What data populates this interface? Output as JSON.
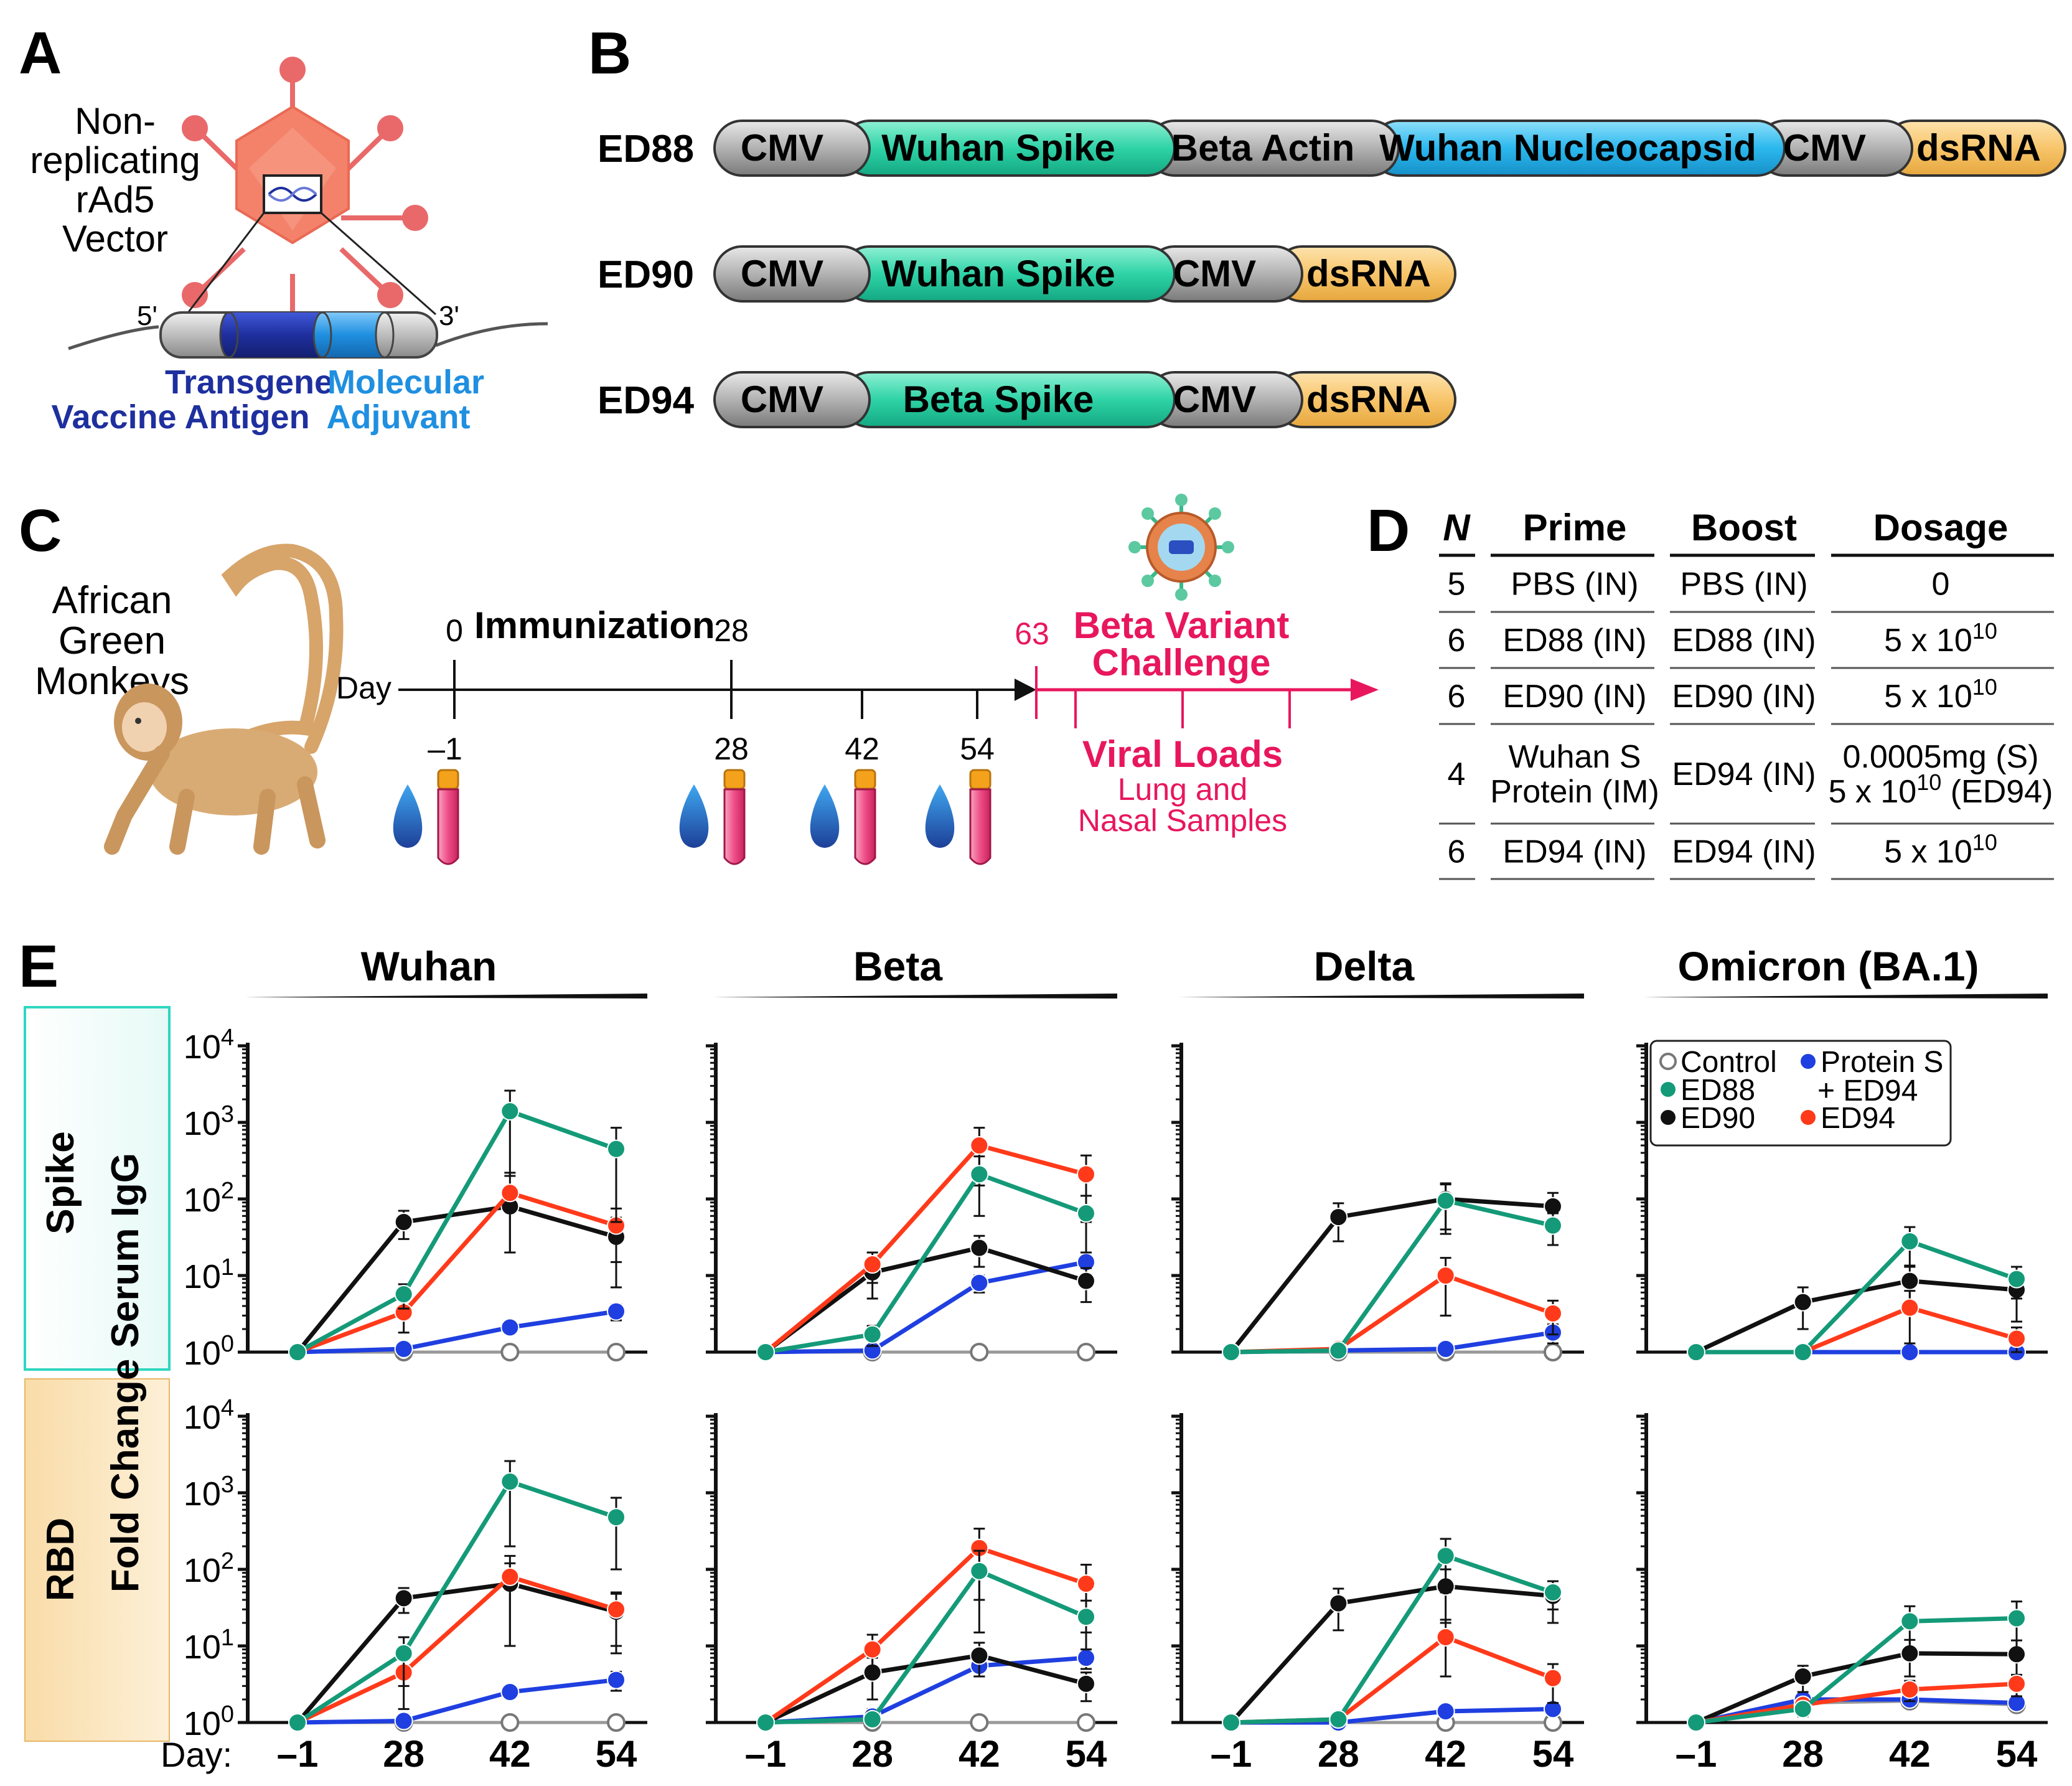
{
  "panels": {
    "a": "A",
    "b": "B",
    "c": "C",
    "d": "D",
    "e": "E"
  },
  "panel_a": {
    "vector_lines": [
      "Non-",
      "replicating",
      "rAd5",
      "Vector"
    ],
    "end5": "5'",
    "end3": "3'",
    "transgene": "Transgene",
    "antigen": "Vaccine Antigen",
    "molecular": "Molecular",
    "adjuvant": "Adjuvant",
    "colors": {
      "capsid": "#f4826b",
      "antigen": "#1e2f9e",
      "adjuvant": "#1f8fe0"
    }
  },
  "constructs": [
    {
      "name": "ED88",
      "segments": [
        {
          "label": "CMV",
          "kind": "cmv"
        },
        {
          "label": "Wuhan Spike",
          "kind": "spike"
        },
        {
          "label": "Beta Actin",
          "kind": "cmv"
        },
        {
          "label": "Wuhan Nucleocapsid",
          "kind": "nuc"
        },
        {
          "label": "CMV",
          "kind": "cmv"
        },
        {
          "label": "dsRNA",
          "kind": "ds"
        }
      ]
    },
    {
      "name": "ED90",
      "segments": [
        {
          "label": "CMV",
          "kind": "cmv"
        },
        {
          "label": "Wuhan Spike",
          "kind": "spike"
        },
        {
          "label": "CMV",
          "kind": "cmv"
        },
        {
          "label": "dsRNA",
          "kind": "ds"
        }
      ]
    },
    {
      "name": "ED94",
      "segments": [
        {
          "label": "CMV",
          "kind": "cmv"
        },
        {
          "label": "Beta Spike",
          "kind": "spike"
        },
        {
          "label": "CMV",
          "kind": "cmv"
        },
        {
          "label": "dsRNA",
          "kind": "ds"
        }
      ]
    }
  ],
  "segment_colors": {
    "cmv": "#a9a9a9",
    "spike": "#2ed3a6",
    "nuc": "#2bb8ee",
    "ds": "#f8c56b"
  },
  "panel_c": {
    "animal": [
      "African",
      "Green",
      "Monkeys"
    ],
    "day_label": "Day",
    "immunization": "Immunization",
    "day0": "0",
    "day28_top": "28",
    "day63": "63",
    "challenge_line1": "Beta Variant",
    "challenge_line2": "Challenge",
    "bleed_days": [
      "–1",
      "28",
      "42",
      "54"
    ],
    "viral_loads": "Viral Loads",
    "samples_line1": "Lung and",
    "samples_line2": "Nasal Samples",
    "challenge_color": "#e8175d"
  },
  "panel_d": {
    "headers": [
      "N",
      "Prime",
      "Boost",
      "Dosage"
    ],
    "rows": [
      {
        "n": "5",
        "prime": [
          "PBS (IN)"
        ],
        "boost": "PBS (IN)",
        "dose": [
          {
            "t": "0",
            "e": ""
          }
        ]
      },
      {
        "n": "6",
        "prime": [
          "ED88 (IN)"
        ],
        "boost": "ED88 (IN)",
        "dose": [
          {
            "t": "5 x 10",
            "e": "10"
          }
        ]
      },
      {
        "n": "6",
        "prime": [
          "ED90 (IN)"
        ],
        "boost": "ED90 (IN)",
        "dose": [
          {
            "t": "5 x 10",
            "e": "10"
          }
        ]
      },
      {
        "n": "4",
        "prime": [
          "Wuhan S",
          "Protein (IM)"
        ],
        "boost": "ED94 (IN)",
        "dose": [
          {
            "t": "0.0005mg (S)",
            "e": ""
          },
          {
            "t": "5 x 10",
            "e": "10",
            "s": " (ED94)"
          }
        ]
      },
      {
        "n": "6",
        "prime": [
          "ED94 (IN)"
        ],
        "boost": "ED94 (IN)",
        "dose": [
          {
            "t": "5 x 10",
            "e": "10"
          }
        ]
      }
    ]
  },
  "panel_e": {
    "y_label": "Fold Change Serum IgG",
    "row_labels": [
      "Spike",
      "RBD"
    ],
    "day_label": "Day:",
    "y_ticks": [
      {
        "b": "10",
        "e": "4"
      },
      {
        "b": "10",
        "e": "3"
      },
      {
        "b": "10",
        "e": "2"
      },
      {
        "b": "10",
        "e": "1"
      },
      {
        "b": "10",
        "e": "0"
      }
    ],
    "legend": {
      "control": "Control",
      "ed88": "ED88",
      "ed90": "ED90",
      "protein1": "Protein S",
      "protein2": "+ ED94",
      "ed94": "ED94"
    },
    "row_colors": {
      "spike": "#2fd6c0",
      "rbd": "#f5c87c"
    }
  },
  "chart_data": {
    "type": "line",
    "x": [
      "–1",
      "28",
      "42",
      "54"
    ],
    "x_tick_labels": [
      "–1",
      "28",
      "42",
      "54"
    ],
    "y_scale": "log10",
    "ylim": [
      1,
      10000
    ],
    "ylabel": "Fold Change Serum IgG",
    "xlabel": "Day:",
    "columns": [
      "Wuhan",
      "Beta",
      "Delta",
      "Omicron (BA.1)"
    ],
    "rows": [
      "Spike",
      "RBD"
    ],
    "series_style": [
      {
        "name": "Control",
        "color": "#999999",
        "hollow": true
      },
      {
        "name": "Protein S + ED94",
        "color": "#1f3fe0"
      },
      {
        "name": "ED90",
        "color": "#111111"
      },
      {
        "name": "ED94",
        "color": "#ff3a1a"
      },
      {
        "name": "ED88",
        "color": "#149a78"
      }
    ],
    "panels": [
      {
        "row": "Spike",
        "column": "Wuhan",
        "series": [
          {
            "name": "Control",
            "values": [
              1,
              1,
              1,
              1
            ]
          },
          {
            "name": "Protein S + ED94",
            "values": [
              1,
              1.1,
              2.1,
              3.4
            ],
            "err": [
              0,
              0,
              0.2,
              0.8
            ]
          },
          {
            "name": "ED90",
            "values": [
              1,
              50,
              80,
              32
            ],
            "err": [
              0,
              20,
              60,
              25
            ]
          },
          {
            "name": "ED94",
            "values": [
              1,
              3.3,
              120,
              45
            ],
            "err": [
              0,
              1.5,
              100,
              30
            ]
          },
          {
            "name": "ED88",
            "values": [
              1,
              5.7,
              1400,
              450
            ],
            "err": [
              0,
              2,
              1200,
              400
            ]
          }
        ]
      },
      {
        "row": "Spike",
        "column": "Beta",
        "series": [
          {
            "name": "Control",
            "values": [
              1,
              1,
              1,
              1
            ]
          },
          {
            "name": "Protein S + ED94",
            "values": [
              1,
              1.05,
              8,
              15
            ],
            "err": [
              0,
              0,
              2,
              5
            ]
          },
          {
            "name": "ED90",
            "values": [
              1,
              11,
              23,
              8.5
            ],
            "err": [
              0,
              6,
              10,
              4
            ]
          },
          {
            "name": "ED94",
            "values": [
              1,
              14,
              500,
              210
            ],
            "err": [
              0,
              6,
              350,
              160
            ]
          },
          {
            "name": "ED88",
            "values": [
              1,
              1.7,
              210,
              65
            ],
            "err": [
              0,
              0.5,
              150,
              45
            ]
          }
        ]
      },
      {
        "row": "Spike",
        "column": "Delta",
        "series": [
          {
            "name": "Control",
            "values": [
              1,
              1,
              1,
              1
            ]
          },
          {
            "name": "Protein S + ED94",
            "values": [
              1,
              1.05,
              1.1,
              1.8
            ],
            "err": [
              0,
              0,
              0,
              0.5
            ]
          },
          {
            "name": "ED90",
            "values": [
              1,
              58,
              100,
              80
            ],
            "err": [
              0,
              30,
              60,
              40
            ]
          },
          {
            "name": "ED94",
            "values": [
              1,
              1.1,
              10,
              3.2
            ],
            "err": [
              0,
              0.2,
              7,
              1.5
            ]
          },
          {
            "name": "ED88",
            "values": [
              1,
              1.05,
              95,
              45
            ],
            "err": [
              0,
              0,
              60,
              20
            ]
          }
        ]
      },
      {
        "row": "Spike",
        "column": "Omicron (BA.1)",
        "series": [
          {
            "name": "Control",
            "values": [
              1,
              1,
              1,
              1
            ]
          },
          {
            "name": "Protein S + ED94",
            "values": [
              1,
              1,
              1,
              1
            ],
            "err": [
              0,
              0,
              0,
              0
            ]
          },
          {
            "name": "ED90",
            "values": [
              1,
              4.5,
              8.5,
              6.5
            ],
            "err": [
              0,
              2.5,
              5,
              4
            ]
          },
          {
            "name": "ED94",
            "values": [
              1,
              1,
              3.8,
              1.5
            ],
            "err": [
              0,
              0,
              2.5,
              0.6
            ]
          },
          {
            "name": "ED88",
            "values": [
              1,
              1,
              28,
              9
            ],
            "err": [
              0,
              0,
              15,
              4
            ]
          }
        ]
      },
      {
        "row": "RBD",
        "column": "Wuhan",
        "series": [
          {
            "name": "Control",
            "values": [
              1,
              1,
              1,
              1
            ]
          },
          {
            "name": "Protein S + ED94",
            "values": [
              1,
              1.05,
              2.5,
              3.6
            ],
            "err": [
              0,
              0,
              0.3,
              1
            ]
          },
          {
            "name": "ED90",
            "values": [
              1,
              42,
              65,
              28
            ],
            "err": [
              0,
              15,
              55,
              20
            ]
          },
          {
            "name": "ED94",
            "values": [
              1,
              4.5,
              80,
              30
            ],
            "err": [
              0,
              3,
              70,
              20
            ]
          },
          {
            "name": "ED88",
            "values": [
              1,
              8,
              1400,
              480
            ],
            "err": [
              0,
              5,
              1200,
              380
            ]
          }
        ]
      },
      {
        "row": "RBD",
        "column": "Beta",
        "series": [
          {
            "name": "Control",
            "values": [
              1,
              1,
              1,
              1
            ]
          },
          {
            "name": "Protein S + ED94",
            "values": [
              1,
              1.2,
              5.5,
              7
            ],
            "err": [
              0,
              0.3,
              1.5,
              2
            ]
          },
          {
            "name": "ED90",
            "values": [
              1,
              4.5,
              7.5,
              3.2
            ],
            "err": [
              0,
              2.5,
              3.5,
              1.3
            ]
          },
          {
            "name": "ED94",
            "values": [
              1,
              9,
              190,
              65
            ],
            "err": [
              0,
              5,
              150,
              50
            ]
          },
          {
            "name": "ED88",
            "values": [
              1,
              1.1,
              95,
              24
            ],
            "err": [
              0,
              0.3,
              80,
              15
            ]
          }
        ]
      },
      {
        "row": "RBD",
        "column": "Delta",
        "series": [
          {
            "name": "Control",
            "values": [
              1,
              1,
              1,
              1
            ]
          },
          {
            "name": "Protein S + ED94",
            "values": [
              1,
              1,
              1.4,
              1.5
            ],
            "err": [
              0,
              0,
              0,
              0
            ]
          },
          {
            "name": "ED90",
            "values": [
              1,
              36,
              60,
              45
            ],
            "err": [
              0,
              20,
              40,
              25
            ]
          },
          {
            "name": "ED94",
            "values": [
              1,
              1.1,
              13,
              3.8
            ],
            "err": [
              0,
              0.2,
              9,
              2
            ]
          },
          {
            "name": "ED88",
            "values": [
              1,
              1.1,
              150,
              50
            ],
            "err": [
              0,
              0.2,
              100,
              20
            ]
          }
        ]
      },
      {
        "row": "RBD",
        "column": "Omicron (BA.1)",
        "series": [
          {
            "name": "Control",
            "values": [
              1,
              1.8,
              1.9,
              1.7
            ]
          },
          {
            "name": "Protein S + ED94",
            "values": [
              1,
              2,
              2,
              1.8
            ],
            "err": [
              0,
              0.3,
              0.3,
              0.2
            ]
          },
          {
            "name": "ED90",
            "values": [
              1,
              4,
              8,
              7.8
            ],
            "err": [
              0,
              1.5,
              4,
              4
            ]
          },
          {
            "name": "ED94",
            "values": [
              1,
              1.7,
              2.7,
              3.2
            ],
            "err": [
              0,
              0.3,
              0.8,
              1
            ]
          },
          {
            "name": "ED88",
            "values": [
              1,
              1.5,
              21,
              23
            ],
            "err": [
              0,
              0.3,
              12,
              15
            ]
          }
        ]
      }
    ]
  }
}
